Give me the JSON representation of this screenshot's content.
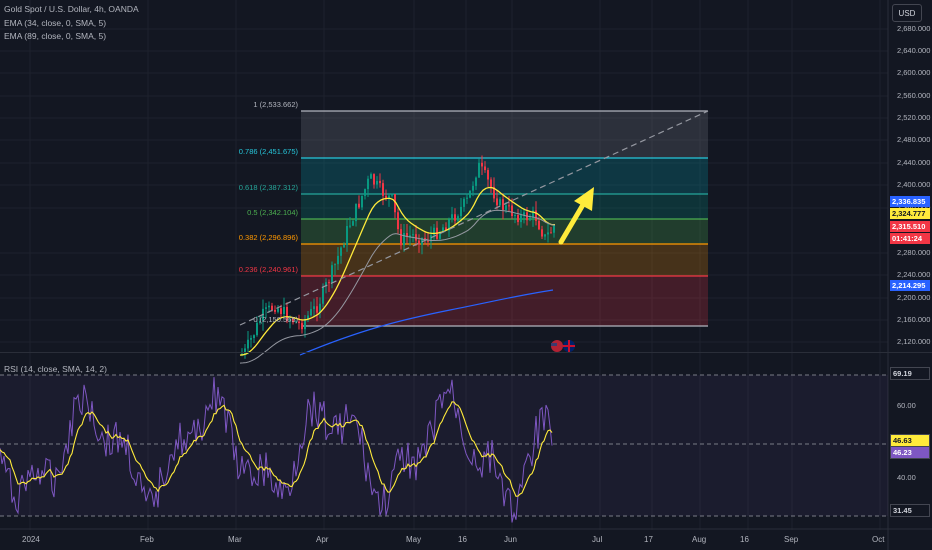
{
  "header": {
    "symbol": "Gold Spot / U.S. Dollar, 4h, OANDA",
    "indicator_1": "EMA (34, close, 0, SMA, 5)",
    "indicator_2": "EMA (89, close, 0, SMA, 5)",
    "currency_button": "USD"
  },
  "price_axis": {
    "labels": [
      "2,680.000",
      "2,640.000",
      "2,600.000",
      "2,560.000",
      "2,520.000",
      "2,480.000",
      "2,440.000",
      "2,400.000",
      "2,360.000",
      "2,280.000",
      "2,240.000",
      "2,200.000",
      "2,160.000",
      "2,120.000"
    ],
    "tags": [
      {
        "text": "2,336.835",
        "bg": "#2962ff",
        "fg": "#ffffff"
      },
      {
        "text": "2,324.777",
        "bg": "#ffeb3b",
        "fg": "#131722"
      },
      {
        "text": "2,315.510",
        "bg": "#f23645",
        "fg": "#ffffff"
      },
      {
        "text": "01:41:24",
        "bg": "#f23645",
        "fg": "#ffffff"
      },
      {
        "text": "2,214.295",
        "bg": "#2962ff",
        "fg": "#ffffff"
      }
    ]
  },
  "fibonacci": {
    "levels": [
      {
        "label": "1 (2,533.662)",
        "color": "#b2b5be"
      },
      {
        "label": "0.786 (2,451.675)",
        "color": "#26c6da"
      },
      {
        "label": "0.618 (2,387.312)",
        "color": "#26a69a"
      },
      {
        "label": "0.5 (2,342.104)",
        "color": "#4caf50"
      },
      {
        "label": "0.382 (2,296.896)",
        "color": "#ff9800"
      },
      {
        "label": "0.236 (2,240.961)",
        "color": "#f23645"
      },
      {
        "label": "0 (2,150.565)",
        "color": "#b2b5be"
      }
    ]
  },
  "rsi": {
    "title": "RSI (14, close, SMA, 14, 2)",
    "axis_labels": [
      "60.00",
      "40.00"
    ],
    "tags": [
      {
        "text": "69.19",
        "bg": "#131722",
        "fg": "#d1d4dc"
      },
      {
        "text": "46.63",
        "bg": "#ffeb3b",
        "fg": "#131722"
      },
      {
        "text": "46.23",
        "bg": "#7e57c2",
        "fg": "#ffffff"
      },
      {
        "text": "31.45",
        "bg": "#131722",
        "fg": "#d1d4dc"
      }
    ]
  },
  "time_axis": {
    "labels": [
      "2024",
      "Feb",
      "Mar",
      "Apr",
      "May",
      "16",
      "Jun",
      "Jul",
      "17",
      "Aug",
      "16",
      "Sep",
      "Oct"
    ]
  },
  "colors": {
    "background": "#131722",
    "ema34": "#ffeb3b",
    "ema89": "#2962ff",
    "rsi_line": "#7e57c2",
    "rsi_ma": "#ffeb3b",
    "up_candle": "#089981",
    "down_candle": "#f23645",
    "arrow": "#ffeb3b"
  },
  "icons": [
    "us-flag-icon",
    "uk-flag-icon"
  ]
}
